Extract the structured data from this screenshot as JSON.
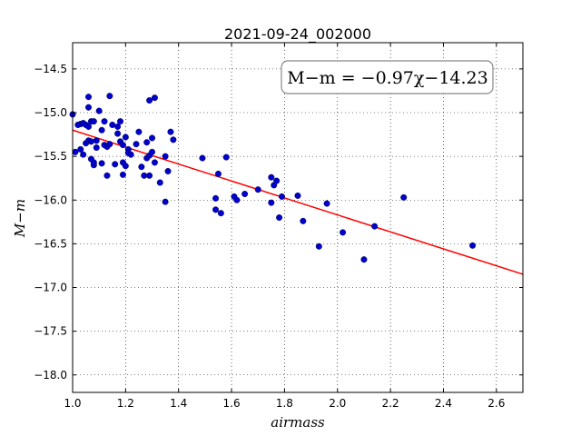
{
  "chart_data": {
    "type": "scatter",
    "title": "2021-09-24_002000",
    "xlabel": "airmass",
    "ylabel": "M−m",
    "xlim": [
      1.0,
      2.7
    ],
    "ylim": [
      -18.2,
      -14.2
    ],
    "y_inverted": true,
    "grid": true,
    "grid_style": "dotted",
    "x_ticks": [
      "1.0",
      "1.2",
      "1.4",
      "1.6",
      "1.8",
      "2.0",
      "2.2",
      "2.4",
      "2.6"
    ],
    "y_ticks": [
      "−14.5",
      "−15.0",
      "−15.5",
      "−16.0",
      "−16.5",
      "−17.0",
      "−17.5",
      "−18.0"
    ],
    "annotation": "M−m = −0.97χ−14.23",
    "annotation_position": "top-right",
    "fit_line": {
      "slope": -0.97,
      "intercept": -14.23,
      "color": "#ff0000"
    },
    "point_color": "#0000cc",
    "points": [
      {
        "x": 1.0,
        "y": -15.02
      },
      {
        "x": 1.01,
        "y": -15.45
      },
      {
        "x": 1.02,
        "y": -15.14
      },
      {
        "x": 1.03,
        "y": -15.13
      },
      {
        "x": 1.03,
        "y": -15.42
      },
      {
        "x": 1.04,
        "y": -15.48
      },
      {
        "x": 1.04,
        "y": -15.12
      },
      {
        "x": 1.05,
        "y": -15.35
      },
      {
        "x": 1.05,
        "y": -15.14
      },
      {
        "x": 1.06,
        "y": -14.94
      },
      {
        "x": 1.06,
        "y": -15.32
      },
      {
        "x": 1.06,
        "y": -15.16
      },
      {
        "x": 1.06,
        "y": -14.82
      },
      {
        "x": 1.07,
        "y": -15.53
      },
      {
        "x": 1.07,
        "y": -15.1
      },
      {
        "x": 1.07,
        "y": -15.33
      },
      {
        "x": 1.08,
        "y": -15.6
      },
      {
        "x": 1.08,
        "y": -15.1
      },
      {
        "x": 1.08,
        "y": -15.57
      },
      {
        "x": 1.09,
        "y": -15.32
      },
      {
        "x": 1.09,
        "y": -15.4
      },
      {
        "x": 1.1,
        "y": -14.98
      },
      {
        "x": 1.11,
        "y": -15.58
      },
      {
        "x": 1.11,
        "y": -15.2
      },
      {
        "x": 1.12,
        "y": -15.37
      },
      {
        "x": 1.12,
        "y": -15.1
      },
      {
        "x": 1.13,
        "y": -15.39
      },
      {
        "x": 1.13,
        "y": -15.72
      },
      {
        "x": 1.14,
        "y": -15.36
      },
      {
        "x": 1.14,
        "y": -14.81
      },
      {
        "x": 1.15,
        "y": -15.14
      },
      {
        "x": 1.16,
        "y": -15.59
      },
      {
        "x": 1.17,
        "y": -15.16
      },
      {
        "x": 1.17,
        "y": -15.24
      },
      {
        "x": 1.18,
        "y": -15.1
      },
      {
        "x": 1.18,
        "y": -15.33
      },
      {
        "x": 1.19,
        "y": -15.37
      },
      {
        "x": 1.19,
        "y": -15.57
      },
      {
        "x": 1.19,
        "y": -15.71
      },
      {
        "x": 1.2,
        "y": -15.28
      },
      {
        "x": 1.2,
        "y": -15.61
      },
      {
        "x": 1.21,
        "y": -15.42
      },
      {
        "x": 1.21,
        "y": -15.46
      },
      {
        "x": 1.22,
        "y": -15.48
      },
      {
        "x": 1.24,
        "y": -15.36
      },
      {
        "x": 1.25,
        "y": -15.22
      },
      {
        "x": 1.26,
        "y": -15.62
      },
      {
        "x": 1.27,
        "y": -15.72
      },
      {
        "x": 1.28,
        "y": -15.34
      },
      {
        "x": 1.28,
        "y": -15.52
      },
      {
        "x": 1.29,
        "y": -15.49
      },
      {
        "x": 1.29,
        "y": -15.72
      },
      {
        "x": 1.29,
        "y": -14.86
      },
      {
        "x": 1.3,
        "y": -15.29
      },
      {
        "x": 1.3,
        "y": -15.45
      },
      {
        "x": 1.31,
        "y": -15.57
      },
      {
        "x": 1.31,
        "y": -14.83
      },
      {
        "x": 1.33,
        "y": -15.8
      },
      {
        "x": 1.35,
        "y": -15.5
      },
      {
        "x": 1.35,
        "y": -16.02
      },
      {
        "x": 1.36,
        "y": -15.67
      },
      {
        "x": 1.37,
        "y": -15.22
      },
      {
        "x": 1.38,
        "y": -15.31
      },
      {
        "x": 1.49,
        "y": -15.52
      },
      {
        "x": 1.54,
        "y": -15.98
      },
      {
        "x": 1.54,
        "y": -16.11
      },
      {
        "x": 1.55,
        "y": -15.7
      },
      {
        "x": 1.56,
        "y": -16.15
      },
      {
        "x": 1.58,
        "y": -15.51
      },
      {
        "x": 1.61,
        "y": -15.96
      },
      {
        "x": 1.62,
        "y": -16.0
      },
      {
        "x": 1.65,
        "y": -15.93
      },
      {
        "x": 1.7,
        "y": -15.88
      },
      {
        "x": 1.75,
        "y": -16.03
      },
      {
        "x": 1.75,
        "y": -15.74
      },
      {
        "x": 1.76,
        "y": -15.83
      },
      {
        "x": 1.77,
        "y": -15.78
      },
      {
        "x": 1.78,
        "y": -16.2
      },
      {
        "x": 1.79,
        "y": -15.96
      },
      {
        "x": 1.85,
        "y": -15.95
      },
      {
        "x": 1.87,
        "y": -16.24
      },
      {
        "x": 1.93,
        "y": -16.53
      },
      {
        "x": 1.96,
        "y": -16.04
      },
      {
        "x": 2.02,
        "y": -16.37
      },
      {
        "x": 2.1,
        "y": -16.68
      },
      {
        "x": 2.14,
        "y": -16.3
      },
      {
        "x": 2.25,
        "y": -15.97
      },
      {
        "x": 2.51,
        "y": -16.52
      }
    ]
  }
}
